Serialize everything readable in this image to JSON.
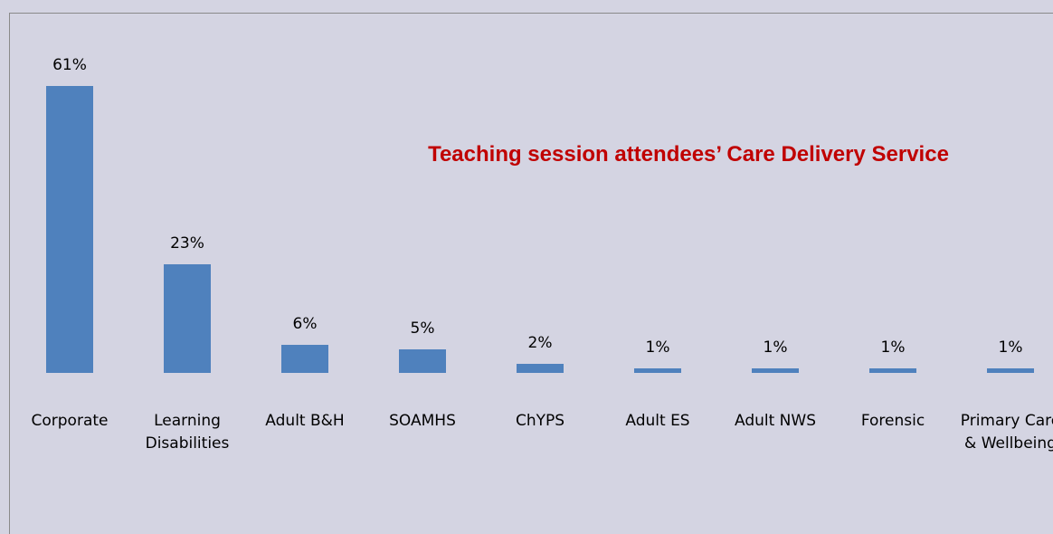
{
  "chart_data": {
    "type": "bar",
    "title": "Teaching session attendees’ Care Delivery Service",
    "categories": [
      "Corporate",
      "Learning Disabilities",
      "Adult B&H",
      "SOAMHS",
      "ChYPS",
      "Adult ES",
      "Adult NWS",
      "Forensic",
      "Primary Care & Wellbeing"
    ],
    "values": [
      61,
      23,
      6,
      5,
      2,
      1,
      1,
      1,
      1
    ],
    "value_labels": [
      "61%",
      "23%",
      "6%",
      "5%",
      "2%",
      "1%",
      "1%",
      "1%",
      "1%"
    ],
    "color": "#4f81bd"
  }
}
